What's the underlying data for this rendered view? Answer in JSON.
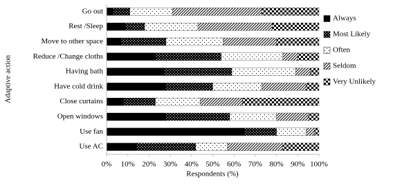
{
  "chart_data": {
    "type": "stacked-bar-horizontal",
    "x_label": "Respondents (%)",
    "y_label": "Adaptive action",
    "categories": [
      "Go out",
      "Rest /Sleep",
      "Move to other space",
      "Reduce /Change cloths",
      "Having bath",
      "Have cold drink",
      "Close curtains",
      "Open windows",
      "Use fan",
      "Use AC"
    ],
    "series": [
      {
        "name": "Always",
        "color": "#000000",
        "pattern": "solid",
        "values": [
          3,
          9,
          7,
          23,
          27,
          28,
          8,
          28,
          65,
          14
        ]
      },
      {
        "name": "Most Likely",
        "color": "#000000",
        "pattern": "dense",
        "values": [
          8,
          9,
          21,
          31,
          32,
          22,
          15,
          30,
          15,
          28
        ]
      },
      {
        "name": "Often",
        "color": "#000000",
        "pattern": "dots",
        "values": [
          20,
          25,
          27,
          29,
          30,
          23,
          21,
          22,
          14,
          15
        ]
      },
      {
        "name": "Seldom",
        "color": "#000000",
        "pattern": "hatch",
        "values": [
          42,
          35,
          25,
          7,
          7,
          21,
          20,
          15,
          4,
          26
        ]
      },
      {
        "name": "Very Unlikely",
        "color": "#000000",
        "pattern": "checker",
        "values": [
          27,
          22,
          20,
          10,
          4,
          6,
          36,
          5,
          2,
          17
        ]
      }
    ],
    "xlim": [
      0,
      100
    ],
    "xticks": [
      {
        "value": 0,
        "label": "0%"
      },
      {
        "value": 10,
        "label": "10%"
      },
      {
        "value": 20,
        "label": "20%"
      },
      {
        "value": 30,
        "label": "30%"
      },
      {
        "value": 40,
        "label": "40%"
      },
      {
        "value": 50,
        "label": "50%"
      },
      {
        "value": 60,
        "label": "60%"
      },
      {
        "value": 70,
        "label": "70%"
      },
      {
        "value": 80,
        "label": "80%"
      },
      {
        "value": 90,
        "label": "90%"
      },
      {
        "value": 100,
        "label": "100%"
      }
    ],
    "grid": false,
    "legend": "right"
  }
}
